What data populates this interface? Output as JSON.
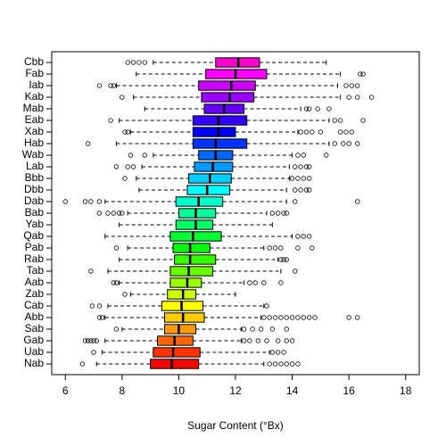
{
  "chart_data": {
    "type": "boxplot",
    "orientation": "horizontal",
    "x_label": "Sugar Content (°Bx)",
    "xlim": [
      5.52,
      18.48
    ],
    "xticks": [
      6,
      8,
      10,
      12,
      14,
      16,
      18
    ],
    "categories": [
      "Cbb",
      "Fab",
      "Iab",
      "Kab",
      "Mab",
      "Eab",
      "Xab",
      "Hab",
      "Wab",
      "Lab",
      "Bbb",
      "Dbb",
      "Dab",
      "Bab",
      "Yab",
      "Qab",
      "Pab",
      "Rab",
      "Tab",
      "Aab",
      "Zab",
      "Cab",
      "Abb",
      "Sab",
      "Gab",
      "Uab",
      "Nab"
    ],
    "colors": [
      "#FF00CC",
      "#FF00FF",
      "#CC00FF",
      "#9900FF",
      "#6600FF",
      "#3300FF",
      "#0000FF",
      "#0033FF",
      "#0066FF",
      "#0099FF",
      "#00CCFF",
      "#00FFFF",
      "#00FFCC",
      "#00FF99",
      "#00FF66",
      "#00FF33",
      "#00FF00",
      "#33FF00",
      "#66FF00",
      "#99FF00",
      "#CCFF00",
      "#FFFF00",
      "#FFCC00",
      "#FF9900",
      "#FF6600",
      "#FF3300",
      "#FF0000"
    ],
    "boxes": [
      {
        "min": 9.1,
        "q1": 11.3,
        "median": 12.1,
        "q3": 12.85,
        "max": 15.2,
        "outliers": [
          8.2,
          8.4,
          8.6,
          8.8
        ]
      },
      {
        "min": 8.5,
        "q1": 10.95,
        "median": 12.0,
        "q3": 13.1,
        "max": 15.7,
        "outliers": [
          16.4,
          16.5
        ]
      },
      {
        "min": 7.8,
        "q1": 10.7,
        "median": 11.85,
        "q3": 12.7,
        "max": 15.6,
        "outliers": [
          7.2,
          7.6,
          7.7,
          15.9,
          16.1,
          16.3
        ]
      },
      {
        "min": 8.4,
        "q1": 10.8,
        "median": 11.8,
        "q3": 12.65,
        "max": 15.7,
        "outliers": [
          8.0,
          16.0,
          16.3,
          16.8
        ]
      },
      {
        "min": 8.8,
        "q1": 10.9,
        "median": 11.6,
        "q3": 12.3,
        "max": 14.3,
        "outliers": [
          14.5,
          14.6,
          14.9,
          15.3
        ]
      },
      {
        "min": 7.9,
        "q1": 10.5,
        "median": 11.4,
        "q3": 12.4,
        "max": 15.3,
        "outliers": [
          7.6,
          15.5,
          15.7,
          16.5
        ]
      },
      {
        "min": 8.3,
        "q1": 10.5,
        "median": 11.4,
        "q3": 12.0,
        "max": 14.2,
        "outliers": [
          8.1,
          8.2,
          14.3,
          14.5,
          14.7,
          15.0,
          15.7,
          15.9,
          16.1
        ]
      },
      {
        "min": 7.8,
        "q1": 10.5,
        "median": 11.3,
        "q3": 12.4,
        "max": 15.3,
        "outliers": [
          6.8,
          15.5,
          15.8,
          16.0,
          16.3
        ]
      },
      {
        "min": 9.1,
        "q1": 10.7,
        "median": 11.3,
        "q3": 11.9,
        "max": 14.0,
        "outliers": [
          8.3,
          8.8,
          14.2,
          14.4,
          15.2
        ]
      },
      {
        "min": 8.7,
        "q1": 10.55,
        "median": 11.2,
        "q3": 11.9,
        "max": 13.9,
        "outliers": [
          7.8,
          8.2,
          8.4,
          14.1,
          14.3,
          14.5,
          14.6
        ]
      },
      {
        "min": 8.5,
        "q1": 10.35,
        "median": 11.1,
        "q3": 11.85,
        "max": 13.9,
        "outliers": [
          8.1,
          14.0,
          14.2,
          14.4,
          14.6
        ]
      },
      {
        "min": 8.6,
        "q1": 10.3,
        "median": 11.0,
        "q3": 11.8,
        "max": 13.8,
        "outliers": [
          14.1,
          14.3,
          14.5,
          14.6
        ]
      },
      {
        "min": 7.4,
        "q1": 9.9,
        "median": 10.7,
        "q3": 11.55,
        "max": 13.8,
        "outliers": [
          6.0,
          6.7,
          6.9,
          7.2,
          14.1,
          16.3
        ]
      },
      {
        "min": 8.2,
        "q1": 10.0,
        "median": 10.6,
        "q3": 11.3,
        "max": 13.1,
        "outliers": [
          7.2,
          7.5,
          7.7,
          7.9,
          8.0,
          13.3,
          13.5,
          13.7,
          13.8
        ]
      },
      {
        "min": 7.9,
        "q1": 9.9,
        "median": 10.6,
        "q3": 11.2,
        "max": 13.3,
        "outliers": []
      },
      {
        "min": 7.4,
        "q1": 9.7,
        "median": 10.5,
        "q3": 11.5,
        "max": 14.0,
        "outliers": [
          14.2,
          14.4,
          14.6
        ]
      },
      {
        "min": 8.2,
        "q1": 9.8,
        "median": 10.4,
        "q3": 11.1,
        "max": 13.0,
        "outliers": [
          7.8,
          13.2,
          13.4,
          13.6,
          14.2,
          14.7
        ]
      },
      {
        "min": 7.9,
        "q1": 9.85,
        "median": 10.4,
        "q3": 11.3,
        "max": 13.5,
        "outliers": [
          13.6,
          13.7,
          13.8
        ]
      },
      {
        "min": 7.5,
        "q1": 9.7,
        "median": 10.35,
        "q3": 11.2,
        "max": 13.6,
        "outliers": [
          6.9,
          14.1
        ]
      },
      {
        "min": 7.9,
        "q1": 9.7,
        "median": 10.3,
        "q3": 10.8,
        "max": 12.3,
        "outliers": [
          7.7,
          7.8,
          12.5,
          12.7,
          13.0,
          13.6
        ]
      },
      {
        "min": 8.3,
        "q1": 9.6,
        "median": 10.15,
        "q3": 10.6,
        "max": 12.0,
        "outliers": [
          8.1
        ]
      },
      {
        "min": 7.5,
        "q1": 9.4,
        "median": 10.1,
        "q3": 10.85,
        "max": 13.0,
        "outliers": [
          6.95,
          7.2,
          13.1
        ]
      },
      {
        "min": 7.4,
        "q1": 9.5,
        "median": 10.15,
        "q3": 10.9,
        "max": 12.9,
        "outliers": [
          7.2,
          7.3,
          13.0,
          13.2,
          13.4,
          13.6,
          13.8,
          14.0,
          14.2,
          14.4,
          14.6,
          14.8,
          16.0,
          16.3
        ]
      },
      {
        "min": 8.0,
        "q1": 9.5,
        "median": 10.0,
        "q3": 10.6,
        "max": 12.2,
        "outliers": [
          7.8,
          12.3,
          12.6,
          12.9,
          13.3,
          13.8
        ]
      },
      {
        "min": 7.4,
        "q1": 9.25,
        "median": 9.85,
        "q3": 10.5,
        "max": 12.2,
        "outliers": [
          6.7,
          6.8,
          6.9,
          7.0,
          7.1,
          12.3,
          12.5,
          12.8,
          13.1,
          13.5,
          13.8,
          14.0
        ]
      },
      {
        "min": 7.3,
        "q1": 9.1,
        "median": 9.8,
        "q3": 10.75,
        "max": 13.2,
        "outliers": [
          7.0,
          13.3,
          13.5,
          13.7
        ]
      },
      {
        "min": 7.1,
        "q1": 9.0,
        "median": 9.75,
        "q3": 10.7,
        "max": 13.0,
        "outliers": [
          6.6,
          13.2,
          13.4,
          13.6,
          13.8,
          14.0,
          14.2
        ]
      }
    ]
  }
}
